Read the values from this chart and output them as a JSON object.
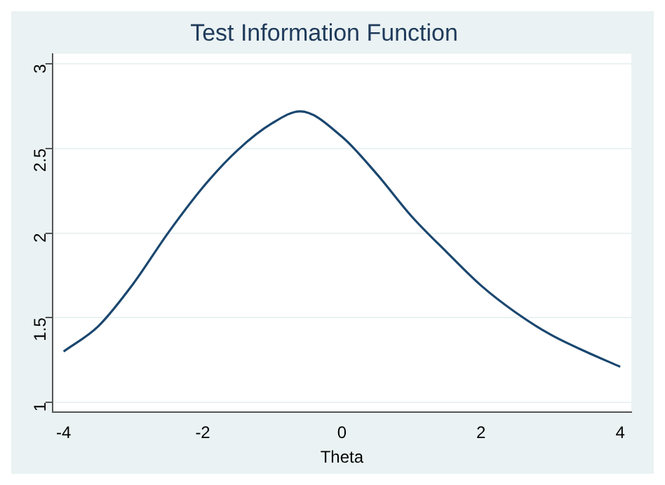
{
  "chart_data": {
    "type": "line",
    "title": "Test Information Function",
    "xlabel": "Theta",
    "series": [
      {
        "color": "#1a476f",
        "x": [
          -4,
          -3.5,
          -3,
          -2.5,
          -2,
          -1.5,
          -1,
          -0.6,
          0,
          0.5,
          1,
          1.5,
          2,
          2.5,
          3,
          3.5,
          4
        ],
        "values": [
          1.3,
          1.45,
          1.7,
          2.0,
          2.27,
          2.49,
          2.65,
          2.72,
          2.57,
          2.35,
          2.1,
          1.89,
          1.69,
          1.53,
          1.4,
          1.3,
          1.21
        ]
      }
    ],
    "xlim": [
      -4.16,
      4.16
    ],
    "xticks": [
      -4,
      -2,
      0,
      2,
      4
    ],
    "ylim": [
      0.94,
      3.06
    ],
    "yticks": [
      1,
      1.5,
      2,
      2.5,
      3
    ],
    "grid": "y",
    "legend": false,
    "marker": "none",
    "line_style": "solid"
  }
}
